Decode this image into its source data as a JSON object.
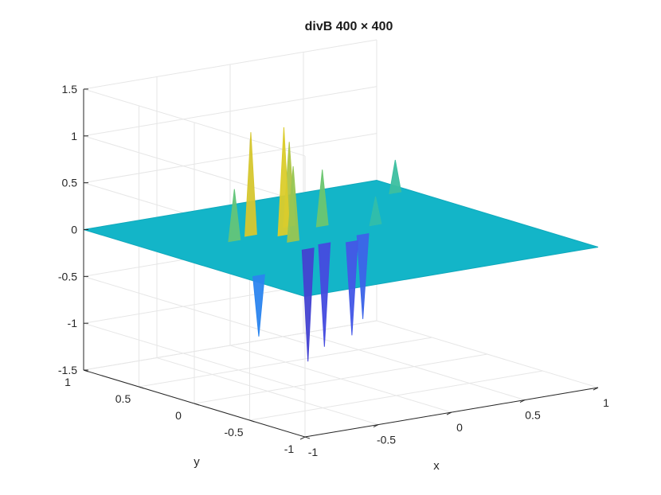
{
  "chart_data": {
    "type": "surface",
    "title": "divB 400 × 400",
    "xlabel": "x",
    "ylabel": "y",
    "zlabel": "",
    "xlim": [
      -1,
      1
    ],
    "ylim": [
      -1,
      1
    ],
    "zlim": [
      -1.5,
      1.5
    ],
    "x_ticks": [
      "-1",
      "-0.5",
      "0",
      "0.5",
      "1"
    ],
    "y_ticks": [
      "-1",
      "-0.5",
      "0",
      "0.5",
      "1"
    ],
    "z_ticks": [
      "-1.5",
      "-1",
      "-0.5",
      "0",
      "0.5",
      "1",
      "1.5"
    ],
    "grid": true,
    "colormap": "parula",
    "base_value": 0,
    "peaks": [
      {
        "x": -0.35,
        "y": 0.35,
        "value": 1.1
      },
      {
        "x": -0.2,
        "y": 0.25,
        "value": 1.15
      },
      {
        "x": -0.25,
        "y": 0.1,
        "value": 0.8
      },
      {
        "x": -0.05,
        "y": 0.4,
        "value": 0.9
      },
      {
        "x": 0.1,
        "y": 0.3,
        "value": 0.6
      },
      {
        "x": -0.5,
        "y": 0.3,
        "value": 0.55
      },
      {
        "x": 0.35,
        "y": 0.15,
        "value": 0.3
      },
      {
        "x": 0.9,
        "y": 0.7,
        "value": 0.35
      },
      {
        "x": -0.9,
        "y": -0.45,
        "value": -0.65
      },
      {
        "x": -0.3,
        "y": -0.1,
        "value": -1.2
      },
      {
        "x": -0.15,
        "y": -0.05,
        "value": -1.1
      },
      {
        "x": 0.0,
        "y": -0.1,
        "value": -1.0
      },
      {
        "x": 0.15,
        "y": 0.0,
        "value": -0.9
      }
    ],
    "colors": {
      "surface_base": "#13b5c8",
      "low": "#3c50e0",
      "high": "#f2d51a",
      "axis": "#262626",
      "grid": "#e6e6e6"
    }
  }
}
